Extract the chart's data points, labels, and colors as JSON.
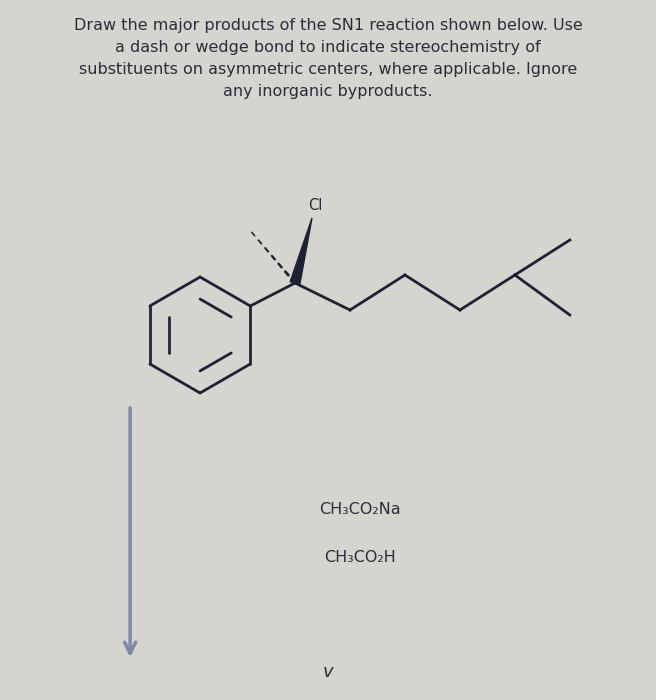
{
  "title_lines": [
    "Draw the major products of the SN1 reaction shown below. Use",
    "a dash or wedge bond to indicate stereochemistry of",
    "substituents on asymmetric centers, where applicable. Ignore",
    "any inorganic byproducts."
  ],
  "background_color": "#d6d4ce",
  "text_color": "#2a2d3a",
  "arrow_color": "#7a8aaa",
  "bond_color": "#1e2235",
  "reagent1": "CH₃CO₂Na",
  "reagent2": "CH₃CO₂H",
  "title_fontsize": 11.5,
  "reagent_fontsize": 11.5
}
